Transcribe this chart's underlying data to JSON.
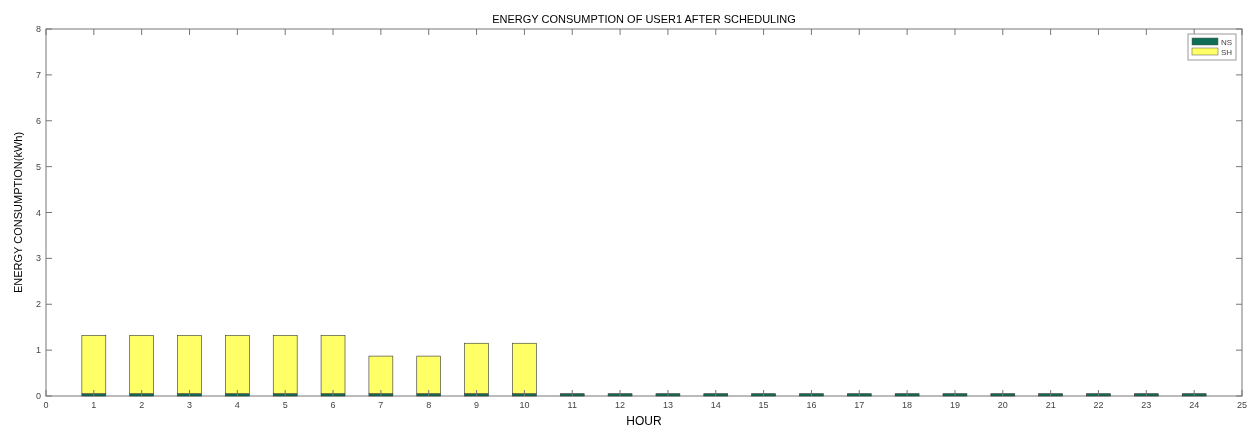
{
  "chart_data": {
    "type": "bar",
    "stacked": true,
    "title": "ENERGY CONSUMPTION OF USER1 AFTER SCHEDULING",
    "xlabel": "HOUR",
    "ylabel": "ENERGY CONSUMPTION(kWh)",
    "x": [
      1,
      2,
      3,
      4,
      5,
      6,
      7,
      8,
      9,
      10,
      11,
      12,
      13,
      14,
      15,
      16,
      17,
      18,
      19,
      20,
      21,
      22,
      23,
      24
    ],
    "series": [
      {
        "name": "NS",
        "color": "#0f6e55",
        "values": [
          0.05,
          0.05,
          0.05,
          0.05,
          0.05,
          0.05,
          0.05,
          0.05,
          0.05,
          0.05,
          0.05,
          0.05,
          0.05,
          0.05,
          0.05,
          0.05,
          0.05,
          0.05,
          0.05,
          0.05,
          0.05,
          0.05,
          0.05,
          0.05
        ]
      },
      {
        "name": "SH",
        "color": "#ffff66",
        "values": [
          1.27,
          1.27,
          1.27,
          1.27,
          1.27,
          1.27,
          0.82,
          0.82,
          1.1,
          1.1,
          0,
          0,
          0,
          0,
          0,
          0,
          0,
          0,
          0,
          0,
          0,
          0,
          0,
          0
        ]
      }
    ],
    "xlim": [
      0,
      25
    ],
    "xticks": [
      0,
      1,
      2,
      3,
      4,
      5,
      6,
      7,
      8,
      9,
      10,
      11,
      12,
      13,
      14,
      15,
      16,
      17,
      18,
      19,
      20,
      21,
      22,
      23,
      24,
      25
    ],
    "ylim": [
      0,
      8
    ],
    "yticks": [
      0,
      1,
      2,
      3,
      4,
      5,
      6,
      7,
      8
    ],
    "grid": false,
    "legend": "top right"
  }
}
